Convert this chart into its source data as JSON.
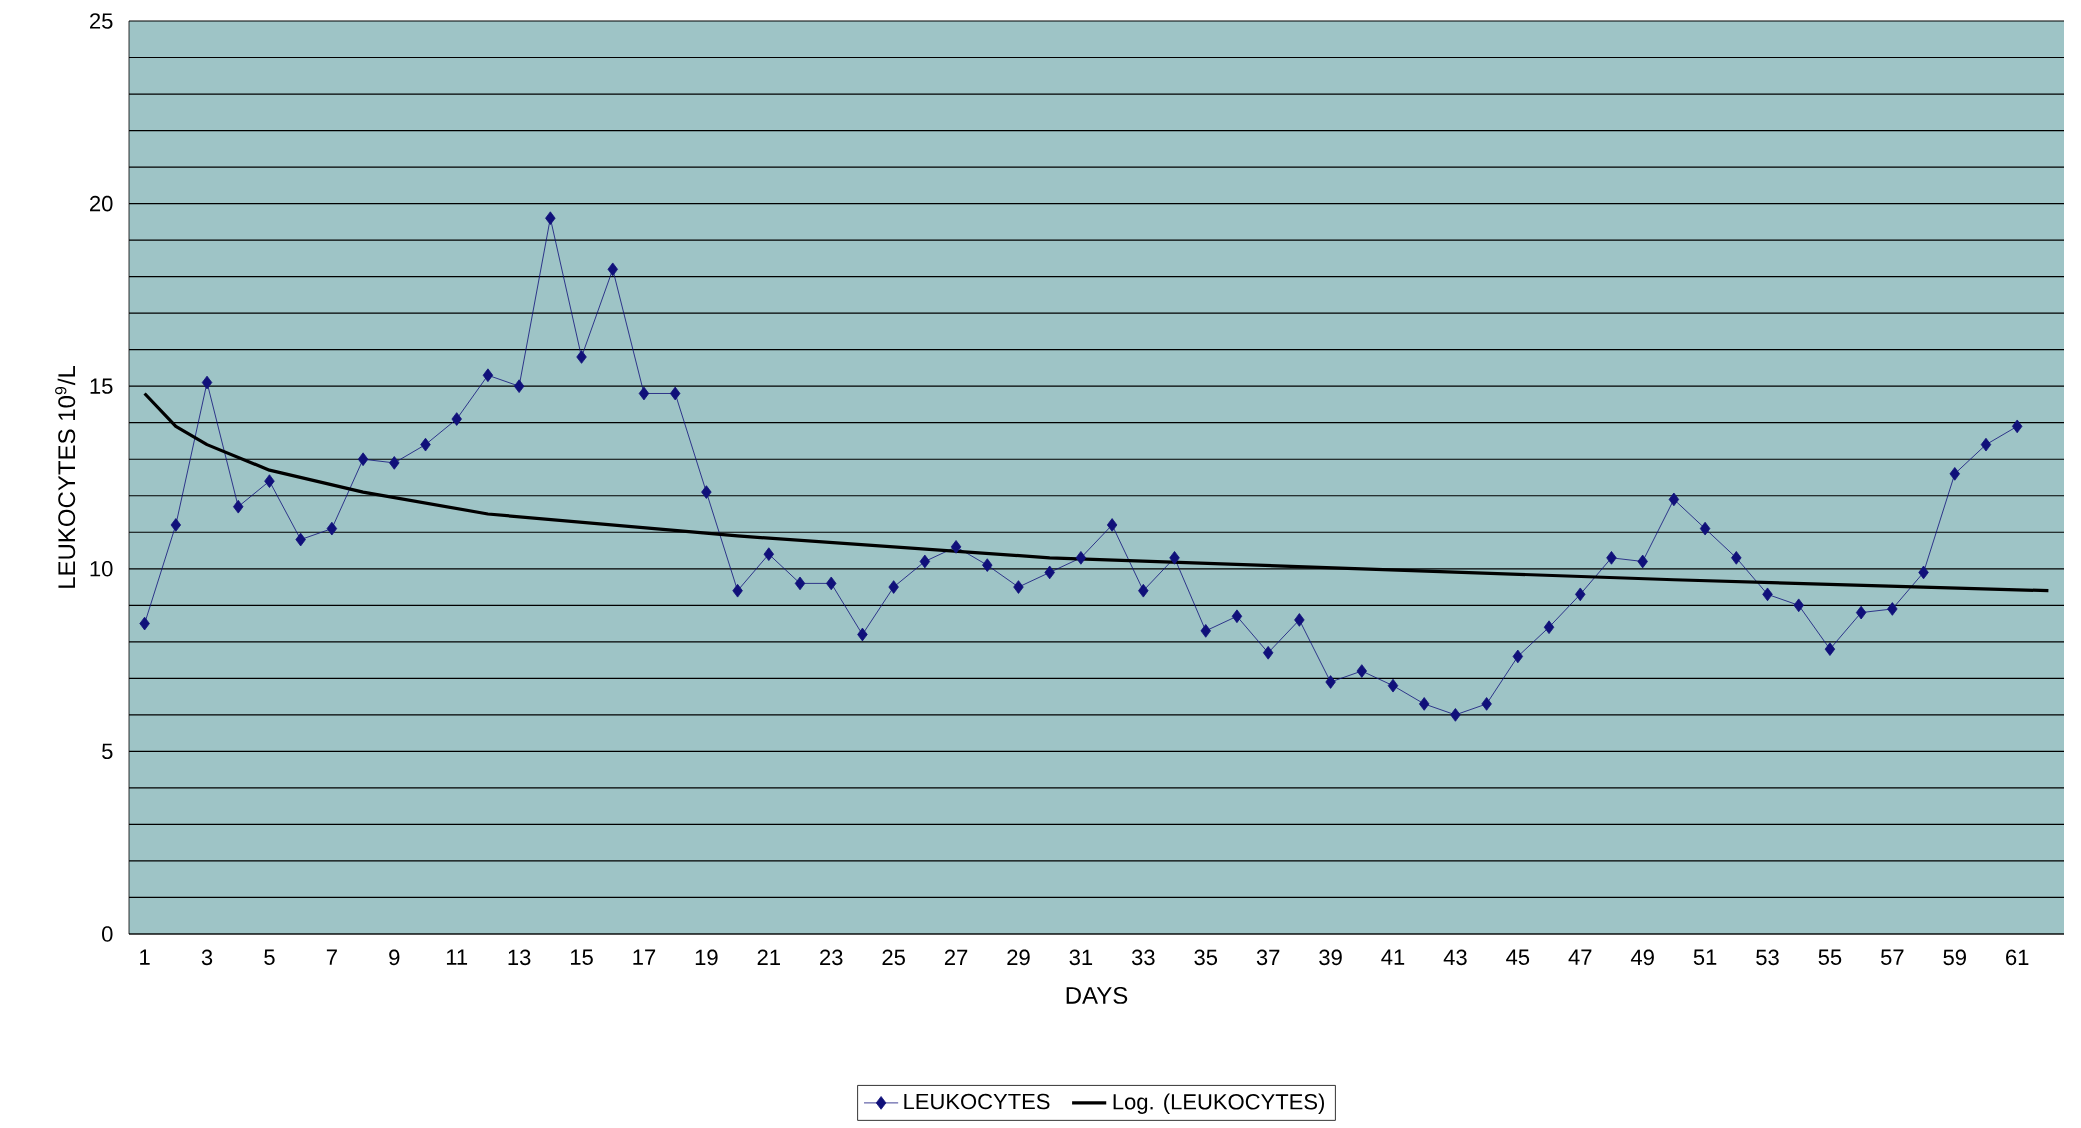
{
  "chart_data": {
    "type": "line",
    "xlabel": "DAYS",
    "ylabel": "LEUKOCYTES 10$^{9}$/L",
    "xlim": [
      0.5,
      62.5
    ],
    "xticks": [
      1,
      3,
      5,
      7,
      9,
      11,
      13,
      15,
      17,
      19,
      21,
      23,
      25,
      27,
      29,
      31,
      33,
      35,
      37,
      39,
      41,
      43,
      45,
      47,
      49,
      51,
      53,
      55,
      57,
      59,
      61
    ],
    "ylim": [
      0,
      25
    ],
    "yticks": [
      0,
      {
        "value": 1,
        "label": null
      },
      {
        "value": 2,
        "label": null
      },
      {
        "value": 3,
        "label": null
      },
      {
        "value": 4,
        "label": null
      },
      5,
      {
        "value": 6,
        "label": null
      },
      {
        "value": 7,
        "label": null
      },
      {
        "value": 8,
        "label": null
      },
      {
        "value": 9,
        "label": null
      },
      10,
      {
        "value": 11,
        "label": null
      },
      {
        "value": 12,
        "label": null
      },
      {
        "value": 13,
        "label": null
      },
      {
        "value": 14,
        "label": null
      },
      15,
      {
        "value": 16,
        "label": null
      },
      {
        "value": 17,
        "label": null
      },
      {
        "value": 18,
        "label": null
      },
      {
        "value": 19,
        "label": null
      },
      20,
      {
        "value": 21,
        "label": null
      },
      {
        "value": 22,
        "label": null
      },
      {
        "value": 23,
        "label": null
      },
      {
        "value": 24,
        "label": null
      },
      25
    ],
    "grid": "y",
    "legend": "bottom",
    "series": [
      {
        "name": "LEUKOCYTES",
        "color": "#10107a",
        "marker": "diamond",
        "x": [
          1,
          2,
          3,
          4,
          5,
          6,
          7,
          8,
          9,
          10,
          11,
          12,
          13,
          14,
          15,
          16,
          17,
          18,
          19,
          20,
          21,
          22,
          23,
          24,
          25,
          26,
          27,
          28,
          29,
          30,
          31,
          32,
          33,
          34,
          35,
          36,
          37,
          38,
          39,
          40,
          41,
          42,
          43,
          44,
          45,
          46,
          47,
          48,
          49,
          50,
          51,
          52,
          53,
          54,
          55,
          56,
          57,
          58,
          59,
          60,
          61
        ],
        "values": [
          8.5,
          11.2,
          15.1,
          11.7,
          12.4,
          10.8,
          11.1,
          13.0,
          12.9,
          13.4,
          14.1,
          15.3,
          15.0,
          19.6,
          15.8,
          18.2,
          14.8,
          14.8,
          12.1,
          9.4,
          10.4,
          9.6,
          9.6,
          8.2,
          9.5,
          10.2,
          10.6,
          10.1,
          9.5,
          9.9,
          10.3,
          11.2,
          9.4,
          10.3,
          8.3,
          8.7,
          7.7,
          8.6,
          6.9,
          7.2,
          6.8,
          6.3,
          6.0,
          6.3,
          7.6,
          8.4,
          9.3,
          10.3,
          10.2,
          11.9,
          11.1,
          10.3,
          9.3,
          9.0,
          7.8,
          8.8,
          8.9,
          9.9,
          12.6,
          13.4,
          13.9
        ]
      },
      {
        "name": "Log. (LEUKOCYTES)",
        "color": "#000000",
        "marker": "none",
        "x": [
          1,
          2,
          3,
          5,
          8,
          12,
          20,
          30,
          40,
          50,
          62
        ],
        "values": [
          14.8,
          13.9,
          13.4,
          12.7,
          12.1,
          11.5,
          10.9,
          10.3,
          10.0,
          9.7,
          9.4
        ]
      }
    ]
  }
}
